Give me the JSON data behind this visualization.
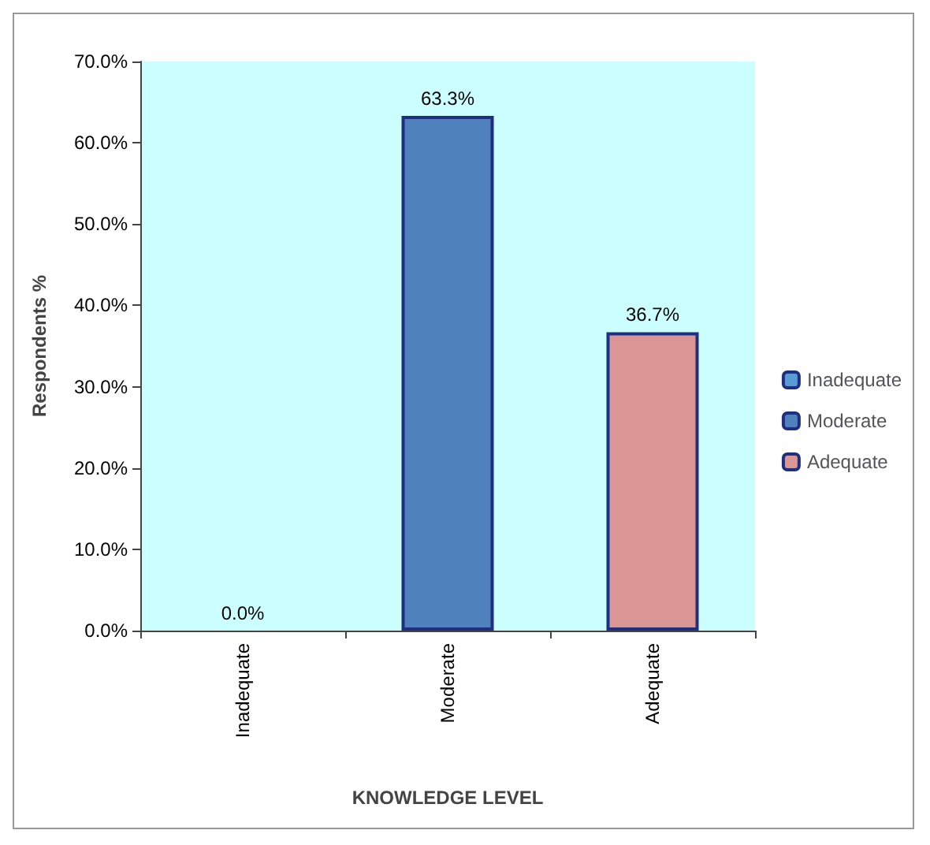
{
  "chart_data": {
    "type": "bar",
    "xlabel": "KNOWLEDGE LEVEL",
    "ylabel": "Respondents %",
    "categories": [
      "Inadequate",
      "Moderate",
      "Adequate"
    ],
    "stacked": true,
    "series": [
      {
        "name": "Inadequate",
        "color": "#5b9bd5",
        "values": [
          0,
          null,
          null
        ],
        "value_labels": [
          "0.0%",
          null,
          null
        ]
      },
      {
        "name": "Moderate",
        "color": "#4f81bd",
        "values": [
          null,
          63.3,
          null
        ],
        "value_labels": [
          null,
          "63.3%",
          null
        ]
      },
      {
        "name": "Adequate",
        "color": "#d99694",
        "values": [
          null,
          null,
          36.7
        ],
        "value_labels": [
          null,
          null,
          "36.7%"
        ]
      }
    ],
    "ylim": [
      0,
      70
    ],
    "yticks": [
      {
        "value": 0,
        "label": "0.0%"
      },
      {
        "value": 10,
        "label": "10.0%"
      },
      {
        "value": 20,
        "label": "20.0%"
      },
      {
        "value": 30,
        "label": "30.0%"
      },
      {
        "value": 40,
        "label": "40.0%"
      },
      {
        "value": 50,
        "label": "50.0%"
      },
      {
        "value": 60,
        "label": "60.0%"
      },
      {
        "value": 70,
        "label": "70.0%"
      }
    ],
    "grid": false,
    "legend": "right"
  }
}
